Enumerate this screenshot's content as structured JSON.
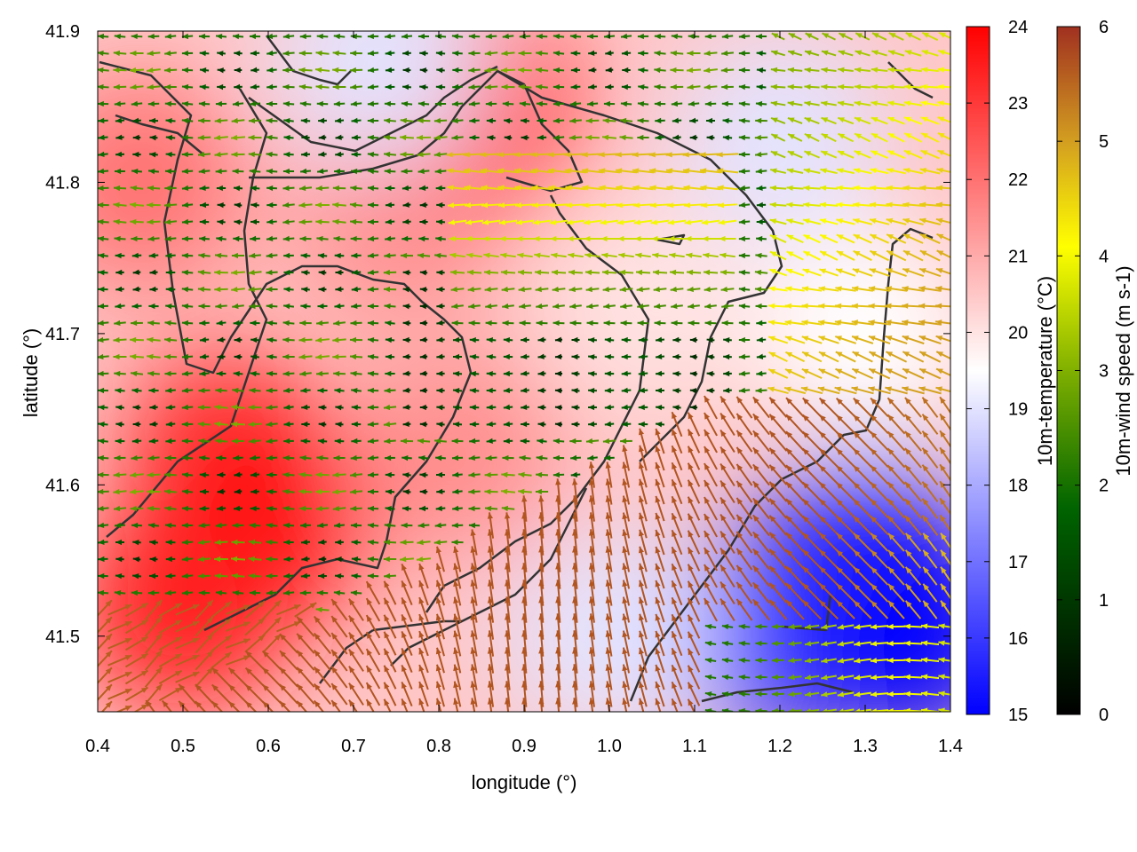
{
  "chart_data": {
    "type": "heatmap",
    "title": "",
    "xlabel": "longitude (°)",
    "ylabel": "latitude (°)",
    "xlim": [
      0.4,
      1.4
    ],
    "ylim": [
      41.45,
      41.9
    ],
    "xticks": [
      "0.4",
      "0.5",
      "0.6",
      "0.7",
      "0.8",
      "0.9",
      "1.0",
      "1.1",
      "1.2",
      "1.3",
      "1.4"
    ],
    "yticks": [
      "41.5",
      "41.6",
      "41.7",
      "41.8",
      "41.9"
    ],
    "x_tick_values": [
      0.4,
      0.5,
      0.6,
      0.7,
      0.8,
      0.9,
      1.0,
      1.1,
      1.2,
      1.3,
      1.4
    ],
    "y_tick_values": [
      41.5,
      41.6,
      41.7,
      41.8,
      41.9
    ],
    "grid": false,
    "temperature_field": {
      "colorbar_label": "10m-temperature (°C)",
      "range": [
        15,
        24
      ],
      "ticks": [
        "15",
        "16",
        "17",
        "18",
        "19",
        "20",
        "21",
        "22",
        "23",
        "24"
      ],
      "tick_values": [
        15,
        16,
        17,
        18,
        19,
        20,
        21,
        22,
        23,
        24
      ],
      "colors": [
        "#0000ff",
        "#ffffff",
        "#ff0000"
      ],
      "blobs": [
        {
          "lon": 0.45,
          "lat": 41.8,
          "value": 22
        },
        {
          "lon": 0.55,
          "lat": 41.62,
          "value": 23
        },
        {
          "lon": 0.6,
          "lat": 41.58,
          "value": 24
        },
        {
          "lon": 0.5,
          "lat": 41.52,
          "value": 23.5
        },
        {
          "lon": 0.75,
          "lat": 41.78,
          "value": 21.5
        },
        {
          "lon": 0.82,
          "lat": 41.62,
          "value": 21.5
        },
        {
          "lon": 0.85,
          "lat": 41.85,
          "value": 22.5
        },
        {
          "lon": 0.73,
          "lat": 41.88,
          "value": 19
        },
        {
          "lon": 1.2,
          "lat": 41.83,
          "value": 19
        },
        {
          "lon": 1.05,
          "lat": 41.72,
          "value": 20
        },
        {
          "lon": 1.3,
          "lat": 41.7,
          "value": 19.5
        },
        {
          "lon": 1.3,
          "lat": 41.55,
          "value": 15.5
        },
        {
          "lon": 1.2,
          "lat": 41.5,
          "value": 16
        },
        {
          "lon": 1.35,
          "lat": 41.5,
          "value": 15
        },
        {
          "lon": 1.0,
          "lat": 41.5,
          "value": 19
        }
      ],
      "default_value": 20.5
    },
    "wind_field": {
      "colorbar_label": "10m-wind speed (m s-1)",
      "range": [
        0,
        6
      ],
      "ticks": [
        "0",
        "1",
        "2",
        "3",
        "4",
        "5",
        "6"
      ],
      "tick_values": [
        0,
        1,
        2,
        3,
        4,
        5,
        6
      ],
      "colors": [
        "#000000",
        "#006400",
        "#80b000",
        "#ffff00",
        "#d4a020",
        "#a03020"
      ],
      "regimes": [
        {
          "region": "west and central",
          "direction": "westward",
          "speed": 1.5
        },
        {
          "region": "north-east",
          "direction": "south-westward",
          "speed": 4.5
        },
        {
          "region": "south-east",
          "direction": "north-westward",
          "speed": 6
        },
        {
          "region": "south-west corner",
          "direction": "north-eastward",
          "speed": 5.5
        }
      ]
    },
    "contours": {
      "color": "#333333"
    }
  }
}
